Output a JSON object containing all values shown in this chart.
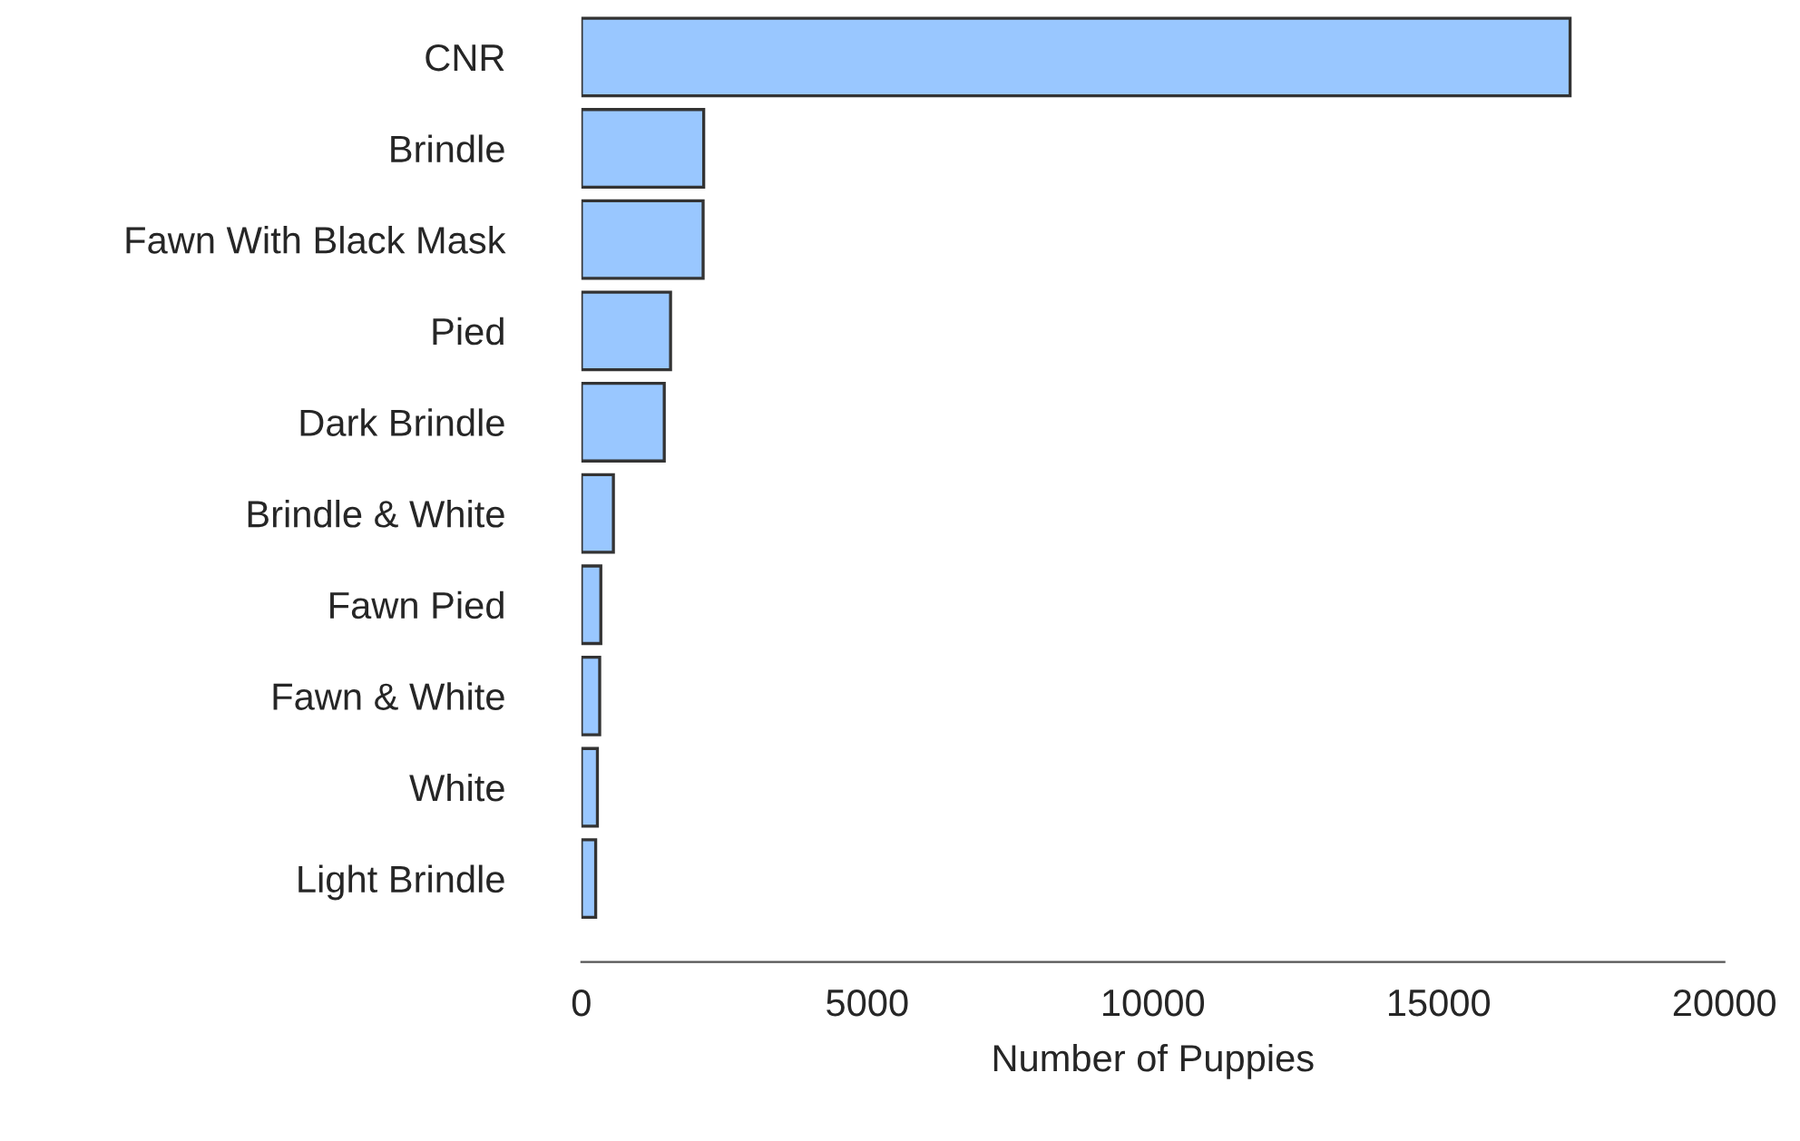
{
  "chart_data": {
    "type": "bar",
    "orientation": "horizontal",
    "xlabel": "Number of Puppies",
    "categories": [
      "CNR",
      "Brindle",
      "Fawn With Black Mask",
      "Pied",
      "Dark Brindle",
      "Brindle & White",
      "Fawn Pied",
      "Fawn & White",
      "White",
      "Light Brindle"
    ],
    "values": [
      17300,
      2140,
      2130,
      1560,
      1450,
      560,
      340,
      320,
      280,
      250
    ],
    "color": "#99c7ff",
    "xlim": [
      0,
      20000
    ],
    "xticks": [
      0,
      5000,
      10000,
      15000,
      20000
    ],
    "grid": false,
    "legend": false
  }
}
